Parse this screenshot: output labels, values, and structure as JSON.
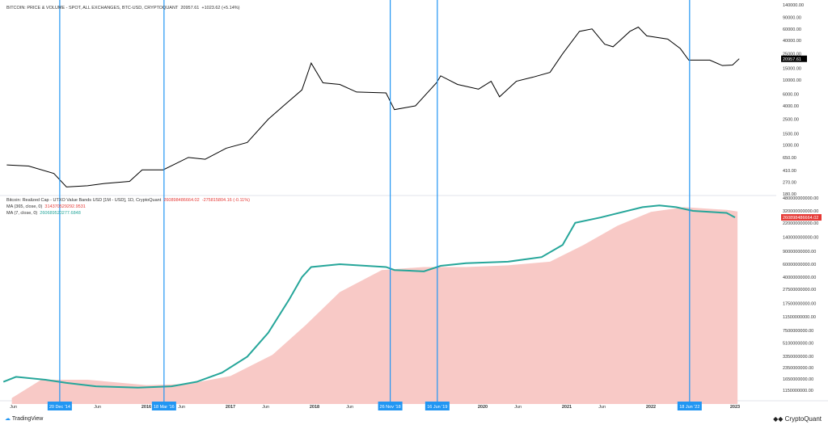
{
  "top_legend": {
    "title": "BITCOIN: PRICE & VOLUME - SPOT, ALL EXCHANGES, BTC-USD, CRYPTOQUANT",
    "value": "20957.61",
    "change": "+1023.62 (+5.14%)"
  },
  "bottom_legend": {
    "title": "Bitcoin: Realized Cap - UTXO Value Bands USD [1M - USD], 1D, CryptoQuant",
    "value": "260898486664.02",
    "change": "-275815804.16 (-0.11%)",
    "ma365_label": "MA (365, close, 0)",
    "ma365_value": "314370529292.9531",
    "ma7_label": "MA (7, close, 0)",
    "ma7_value": "260689520277.6848"
  },
  "branding": {
    "tradingview": "TradingView",
    "cryptoquant": "CryptoQuant"
  },
  "colors": {
    "price": "#000000",
    "ma7": "#26a69a",
    "ma365_fill": "#f8c9c6",
    "markers": "#2196f3",
    "last_price_bg": "#000000",
    "last_cap_bg": "#e53935"
  },
  "chart_data": [
    {
      "type": "line",
      "title": "BITCOIN: PRICE & VOLUME",
      "yscale": "log",
      "ylim": [
        180,
        140000
      ],
      "y_ticks": [
        "140000.00",
        "90000.00",
        "60000.00",
        "40000.00",
        "25000.00",
        "15000.00",
        "10000.00",
        "6000.00",
        "4000.00",
        "2500.00",
        "1500.00",
        "1000.00",
        "650.00",
        "410.00",
        "270.00",
        "180.00"
      ],
      "last_label": "20957.61",
      "series": [
        {
          "name": "BTC price",
          "x": [
            2014.34,
            2014.6,
            2014.9,
            2015.05,
            2015.3,
            2015.5,
            2015.8,
            2015.95,
            2016.2,
            2016.5,
            2016.7,
            2016.95,
            2017.2,
            2017.45,
            2017.65,
            2017.85,
            2017.96,
            2018.1,
            2018.3,
            2018.5,
            2018.85,
            2018.95,
            2019.2,
            2019.45,
            2019.5,
            2019.7,
            2019.95,
            2020.1,
            2020.2,
            2020.4,
            2020.6,
            2020.8,
            2020.95,
            2021.15,
            2021.3,
            2021.45,
            2021.55,
            2021.75,
            2021.85,
            2021.95,
            2022.2,
            2022.35,
            2022.45,
            2022.7,
            2022.85,
            2022.97,
            2023.05
          ],
          "y": [
            500,
            480,
            370,
            230,
            240,
            260,
            280,
            420,
            420,
            650,
            610,
            900,
            1100,
            2500,
            4200,
            7000,
            18000,
            9000,
            8500,
            6500,
            6300,
            3500,
            4000,
            9000,
            11500,
            8500,
            7200,
            9500,
            5500,
            9500,
            11000,
            13000,
            25000,
            55000,
            60000,
            35000,
            32000,
            55000,
            64000,
            47000,
            42000,
            30000,
            20000,
            20000,
            16500,
            16800,
            21000
          ]
        }
      ]
    },
    {
      "type": "area",
      "title": "Bitcoin: Realized Cap",
      "yscale": "log",
      "ylim": [
        1150000000,
        480000000000
      ],
      "y_ticks": [
        "480000000000.00",
        "320000000000.00",
        "220000000000.00",
        "140000000000.00",
        "90000000000.00",
        "60000000000.00",
        "40000000000.00",
        "27500000000.00",
        "17500000000.00",
        "11500000000.00",
        "7500000000.00",
        "5100000000.00",
        "3350000000.00",
        "2350000000.00",
        "1650000000.00",
        "1150000000.00"
      ],
      "last_label": "260898486664.02",
      "series": [
        {
          "name": "MA (7, close, 0)",
          "x": [
            2014.3,
            2014.45,
            2014.8,
            2015.05,
            2015.4,
            2015.9,
            2016.3,
            2016.6,
            2016.9,
            2017.2,
            2017.45,
            2017.7,
            2017.85,
            2017.96,
            2018.3,
            2018.85,
            2018.95,
            2019.3,
            2019.5,
            2019.8,
            2020.3,
            2020.7,
            2020.95,
            2021.1,
            2021.4,
            2021.9,
            2022.1,
            2022.3,
            2022.5,
            2022.9,
            2023.0
          ],
          "y": [
            1500000000.0,
            1750000000.0,
            1600000000.0,
            1450000000.0,
            1300000000.0,
            1250000000.0,
            1300000000.0,
            1500000000.0,
            2000000000.0,
            3300000000.0,
            7000000000.0,
            20000000000.0,
            40000000000.0,
            55000000000.0,
            60000000000.0,
            55000000000.0,
            50000000000.0,
            48000000000.0,
            57000000000.0,
            62000000000.0,
            65000000000.0,
            75000000000.0,
            110000000000.0,
            220000000000.0,
            260000000000.0,
            360000000000.0,
            380000000000.0,
            360000000000.0,
            320000000000.0,
            300000000000.0,
            260000000000.0
          ]
        },
        {
          "name": "MA (365, close, 0)",
          "x": [
            2014.4,
            2014.75,
            2015.3,
            2016.0,
            2016.5,
            2017.0,
            2017.5,
            2017.9,
            2018.3,
            2018.8,
            2019.3,
            2019.8,
            2020.3,
            2020.8,
            2021.2,
            2021.6,
            2022.0,
            2022.4,
            2022.9,
            2023.03
          ],
          "y": [
            900000000.0,
            1600000000.0,
            1600000000.0,
            1350000000.0,
            1400000000.0,
            1800000000.0,
            3500000000.0,
            9000000000.0,
            25000000000.0,
            50000000000.0,
            55000000000.0,
            55000000000.0,
            58000000000.0,
            65000000000.0,
            110000000000.0,
            200000000000.0,
            310000000000.0,
            360000000000.0,
            330000000000.0,
            314000000000.0
          ]
        }
      ]
    }
  ],
  "x_axis": {
    "ticks": [
      {
        "label": "Jun",
        "t": 2014.42
      },
      {
        "label": "Jun",
        "t": 2015.42
      },
      {
        "label": "2016",
        "t": 2016.0
      },
      {
        "label": "Jun",
        "t": 2016.42
      },
      {
        "label": "2017",
        "t": 2017.0
      },
      {
        "label": "Jun",
        "t": 2017.42
      },
      {
        "label": "2018",
        "t": 2018.0
      },
      {
        "label": "Jun",
        "t": 2018.42
      },
      {
        "label": "2020",
        "t": 2020.0
      },
      {
        "label": "Jun",
        "t": 2020.42
      },
      {
        "label": "2021",
        "t": 2021.0
      },
      {
        "label": "Jun",
        "t": 2021.42
      },
      {
        "label": "2022",
        "t": 2022.0
      },
      {
        "label": "2023",
        "t": 2023.0
      }
    ],
    "markers": [
      {
        "label": "20 Dec '14",
        "t": 2014.97
      },
      {
        "label": "18 Mar '16",
        "t": 2016.21
      },
      {
        "label": "26 Nov '18",
        "t": 2018.9
      },
      {
        "label": "16 Jun '19",
        "t": 2019.46
      },
      {
        "label": "18 Jun '22",
        "t": 2022.46
      }
    ]
  }
}
